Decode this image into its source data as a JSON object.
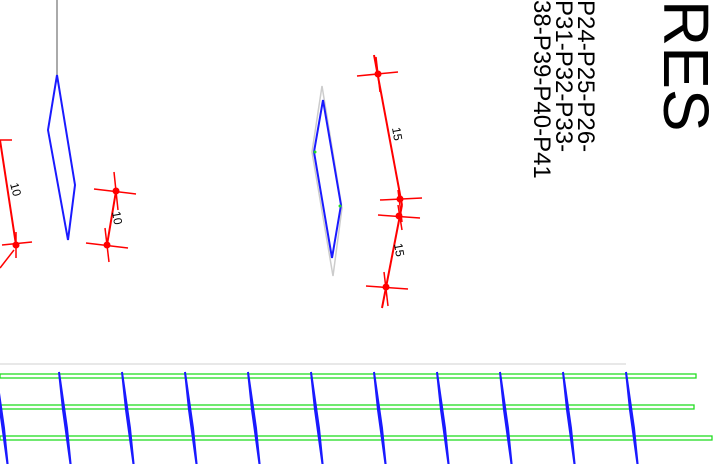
{
  "drawing": {
    "title_fragment": "RES",
    "pile_lines": [
      "P24-P25-P26-",
      "P31-P32-P33-",
      "38-P39-P40-P41"
    ],
    "dimensions": {
      "left_upper": "10",
      "left_lower": "10",
      "right_upper": "15",
      "right_lower": "15"
    }
  },
  "colors": {
    "rebar_outline": "#1a1aff",
    "dimension": "#ff0000",
    "longitudinal_bar": "#22dd22",
    "text": "#000000",
    "guide": "#c0c0c0"
  }
}
